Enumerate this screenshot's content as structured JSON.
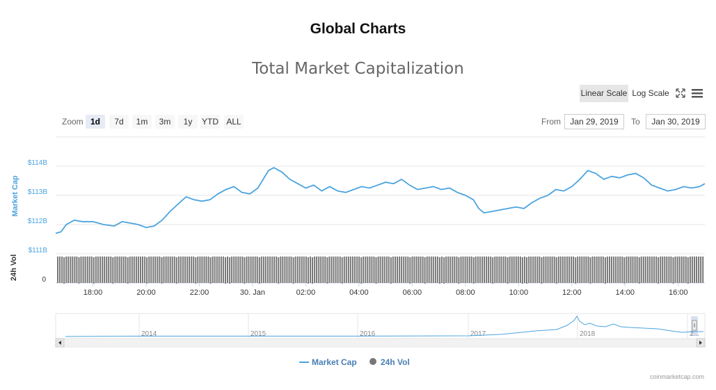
{
  "header": {
    "title": "Global Charts"
  },
  "toolbar": {
    "linear_scale": "Linear Scale",
    "log_scale": "Log Scale",
    "fullscreen_icon": "fullscreen-icon",
    "menu_icon": "hamburger-menu-icon"
  },
  "range_selector": {
    "zoom_label": "Zoom",
    "buttons": [
      "1d",
      "7d",
      "1m",
      "3m",
      "1y",
      "YTD",
      "ALL"
    ],
    "selected": "1d",
    "from_label": "From",
    "from_value": "Jan 29, 2019",
    "to_label": "To",
    "to_value": "Jan 30, 2019"
  },
  "watermark": "coinmarketcap.com",
  "colors": {
    "market_cap": "#4aa3df",
    "volume": "#777777",
    "grid": "#e6e6e6",
    "title": "#666666"
  },
  "chart_data": {
    "type": "line",
    "title": "Total Market Capitalization",
    "series": [
      {
        "name": "Market Cap",
        "ylabel": "Market Cap",
        "y_ticks": [
          "$111B",
          "$112B",
          "$113B",
          "$114B"
        ],
        "ylim": [
          111,
          114
        ],
        "x": [
          16.6,
          16.8,
          17.0,
          17.3,
          17.6,
          18.0,
          18.4,
          18.8,
          19.1,
          19.4,
          19.7,
          20.0,
          20.3,
          20.6,
          20.9,
          21.2,
          21.5,
          21.8,
          22.1,
          22.4,
          22.7,
          23.0,
          23.3,
          23.6,
          23.9,
          24.2,
          24.4,
          24.6,
          24.8,
          25.1,
          25.4,
          25.7,
          26.0,
          26.3,
          26.6,
          26.9,
          27.2,
          27.5,
          27.8,
          28.1,
          28.4,
          28.7,
          29.0,
          29.3,
          29.6,
          29.9,
          30.2,
          30.5,
          30.8,
          31.1,
          31.4,
          31.7,
          32.0,
          32.3,
          32.5,
          32.7,
          33.0,
          33.3,
          33.6,
          33.9,
          34.2,
          34.5,
          34.8,
          35.1,
          35.4,
          35.7,
          36.0,
          36.3,
          36.6,
          36.9,
          37.2,
          37.5,
          37.8,
          38.1,
          38.4,
          38.7,
          39.0,
          39.3,
          39.6,
          39.9,
          40.2,
          40.5,
          40.8,
          41.0
        ],
        "values": [
          111.7,
          111.75,
          112.0,
          112.15,
          112.1,
          112.1,
          112.0,
          111.95,
          112.1,
          112.05,
          112.0,
          111.9,
          111.95,
          112.15,
          112.45,
          112.7,
          112.95,
          112.85,
          112.8,
          112.85,
          113.05,
          113.2,
          113.3,
          113.1,
          113.05,
          113.25,
          113.55,
          113.85,
          113.95,
          113.8,
          113.55,
          113.4,
          113.25,
          113.35,
          113.15,
          113.3,
          113.15,
          113.1,
          113.2,
          113.3,
          113.25,
          113.35,
          113.45,
          113.4,
          113.55,
          113.35,
          113.2,
          113.25,
          113.3,
          113.2,
          113.25,
          113.1,
          113.0,
          112.85,
          112.55,
          112.4,
          112.45,
          112.5,
          112.55,
          112.6,
          112.55,
          112.75,
          112.9,
          113.0,
          113.2,
          113.15,
          113.3,
          113.55,
          113.85,
          113.75,
          113.55,
          113.65,
          113.6,
          113.7,
          113.75,
          113.6,
          113.35,
          113.25,
          113.15,
          113.2,
          113.3,
          113.25,
          113.3,
          113.4
        ]
      },
      {
        "name": "24h Vol",
        "ylabel": "24h Vol",
        "y_ticks": [
          "0"
        ],
        "values_description_relative": 0.95
      }
    ],
    "x_ticks": [
      "18:00",
      "20:00",
      "22:00",
      "30. Jan",
      "02:00",
      "04:00",
      "06:00",
      "08:00",
      "10:00",
      "12:00",
      "14:00",
      "16:00"
    ],
    "navigator_ticks": [
      "2014",
      "2015",
      "2016",
      "2017",
      "2018",
      "2..."
    ],
    "legend": [
      "Market Cap",
      "24h Vol"
    ],
    "legend_position": "bottom-center",
    "grid": true
  }
}
